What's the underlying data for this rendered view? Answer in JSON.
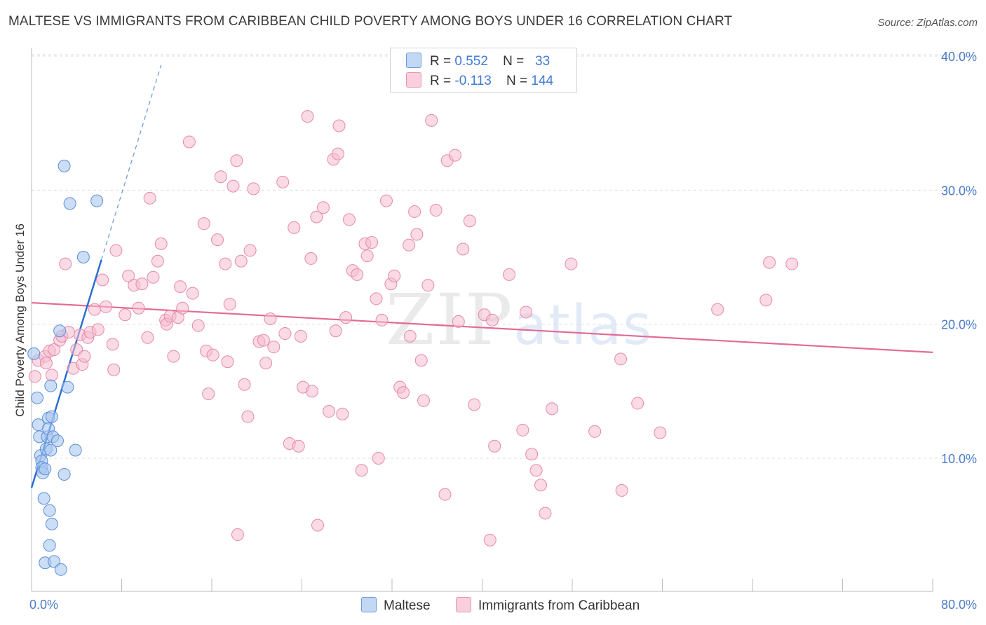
{
  "title": "MALTESE VS IMMIGRANTS FROM CARIBBEAN CHILD POVERTY AMONG BOYS UNDER 16 CORRELATION CHART",
  "source": "Source: ZipAtlas.com",
  "watermark": {
    "zip": "ZIP",
    "atlas": "atlas"
  },
  "colors": {
    "maltese_fill": "#aac7f0",
    "maltese_stroke": "#5b8fd8",
    "maltese_line": "#2a6fd0",
    "caribbean_fill": "#f6bcd0",
    "caribbean_stroke": "#e58aaa",
    "caribbean_line": "#e46a95",
    "tick_text": "#4a7cc9",
    "grid": "#dcdcdc"
  },
  "legend": {
    "r_label": "R =",
    "n_label": "N =",
    "rows": [
      {
        "r": "0.552",
        "n": "33"
      },
      {
        "r": "-0.113",
        "n": "144"
      }
    ]
  },
  "chart_data": {
    "type": "scatter",
    "title": "MALTESE VS IMMIGRANTS FROM CARIBBEAN CHILD POVERTY AMONG BOYS UNDER 16 CORRELATION CHART",
    "xlabel": "",
    "ylabel": "Child Poverty Among Boys Under 16",
    "xlim": [
      0,
      80
    ],
    "ylim": [
      0,
      42
    ],
    "x_ticks_labeled": [
      {
        "v": 0,
        "label": "0.0%"
      },
      {
        "v": 80,
        "label": "80.0%"
      }
    ],
    "x_ticks_minor": [
      0,
      8,
      16,
      24,
      32,
      40,
      48,
      56,
      64,
      72,
      80
    ],
    "y_ticks": [
      {
        "v": 10,
        "label": "10.0%"
      },
      {
        "v": 20,
        "label": "20.0%"
      },
      {
        "v": 30,
        "label": "30.0%"
      },
      {
        "v": 40,
        "label": "40.0%"
      }
    ],
    "grid": true,
    "legend_position": "top-center",
    "series": [
      {
        "name": "Maltese",
        "r": 0.552,
        "n": 33,
        "trend": {
          "x0": 0,
          "y0": 7.8,
          "x1": 6.2,
          "y1": 24.8,
          "dash_to_x": 11.5
        },
        "points": [
          [
            0.2,
            17.8
          ],
          [
            0.5,
            14.5
          ],
          [
            0.6,
            12.5
          ],
          [
            0.7,
            11.6
          ],
          [
            0.8,
            10.2
          ],
          [
            0.9,
            9.8
          ],
          [
            0.9,
            9.3
          ],
          [
            1.0,
            8.9
          ],
          [
            1.1,
            7.0
          ],
          [
            1.2,
            9.2
          ],
          [
            1.2,
            2.2
          ],
          [
            1.3,
            10.7
          ],
          [
            1.4,
            11.6
          ],
          [
            1.5,
            13.0
          ],
          [
            1.5,
            12.2
          ],
          [
            1.6,
            6.1
          ],
          [
            1.6,
            3.5
          ],
          [
            1.7,
            10.6
          ],
          [
            1.7,
            15.4
          ],
          [
            1.8,
            13.1
          ],
          [
            1.8,
            5.1
          ],
          [
            1.9,
            11.6
          ],
          [
            2.0,
            2.3
          ],
          [
            2.3,
            11.3
          ],
          [
            2.5,
            19.5
          ],
          [
            2.6,
            1.7
          ],
          [
            2.9,
            31.8
          ],
          [
            2.9,
            8.8
          ],
          [
            3.2,
            15.3
          ],
          [
            3.4,
            29.0
          ],
          [
            3.9,
            10.6
          ],
          [
            4.6,
            25.0
          ],
          [
            5.8,
            29.2
          ]
        ]
      },
      {
        "name": "Immigrants from Caribbean",
        "r": -0.113,
        "n": 144,
        "trend": {
          "x0": 0,
          "y0": 21.6,
          "x1": 80,
          "y1": 17.9
        },
        "points": [
          [
            0.3,
            16.1
          ],
          [
            0.6,
            17.3
          ],
          [
            1.2,
            17.6
          ],
          [
            1.3,
            17.1
          ],
          [
            1.6,
            18.0
          ],
          [
            1.8,
            16.2
          ],
          [
            2.0,
            18.1
          ],
          [
            2.5,
            18.8
          ],
          [
            2.7,
            19.1
          ],
          [
            3.0,
            24.5
          ],
          [
            3.3,
            19.4
          ],
          [
            3.7,
            16.7
          ],
          [
            4.0,
            18.1
          ],
          [
            4.3,
            19.2
          ],
          [
            4.5,
            17.0
          ],
          [
            4.7,
            17.6
          ],
          [
            5.0,
            19.0
          ],
          [
            5.2,
            19.4
          ],
          [
            5.6,
            21.1
          ],
          [
            5.9,
            19.6
          ],
          [
            6.3,
            23.3
          ],
          [
            6.6,
            21.3
          ],
          [
            7.5,
            25.5
          ],
          [
            7.2,
            18.5
          ],
          [
            7.3,
            16.6
          ],
          [
            8.3,
            20.7
          ],
          [
            8.6,
            23.6
          ],
          [
            9.1,
            22.9
          ],
          [
            9.5,
            21.2
          ],
          [
            9.8,
            23.0
          ],
          [
            10.3,
            19.0
          ],
          [
            10.5,
            29.4
          ],
          [
            10.8,
            23.5
          ],
          [
            11.2,
            24.7
          ],
          [
            11.5,
            26.0
          ],
          [
            11.9,
            20.3
          ],
          [
            12.0,
            20.0
          ],
          [
            12.3,
            20.6
          ],
          [
            12.6,
            17.6
          ],
          [
            13.0,
            20.5
          ],
          [
            13.2,
            22.8
          ],
          [
            13.4,
            21.2
          ],
          [
            14.0,
            33.6
          ],
          [
            14.3,
            22.3
          ],
          [
            14.8,
            19.9
          ],
          [
            15.3,
            27.5
          ],
          [
            15.5,
            18.0
          ],
          [
            15.7,
            14.8
          ],
          [
            16.1,
            17.7
          ],
          [
            16.5,
            26.3
          ],
          [
            16.8,
            31.0
          ],
          [
            17.2,
            24.5
          ],
          [
            17.4,
            17.2
          ],
          [
            17.6,
            21.5
          ],
          [
            17.9,
            30.3
          ],
          [
            18.2,
            32.2
          ],
          [
            18.6,
            24.7
          ],
          [
            18.9,
            15.5
          ],
          [
            19.2,
            13.1
          ],
          [
            19.4,
            25.5
          ],
          [
            19.7,
            30.1
          ],
          [
            20.2,
            18.7
          ],
          [
            20.6,
            18.8
          ],
          [
            20.8,
            17.1
          ],
          [
            21.2,
            20.4
          ],
          [
            21.5,
            18.3
          ],
          [
            22.3,
            30.6
          ],
          [
            22.5,
            19.3
          ],
          [
            22.9,
            11.1
          ],
          [
            23.3,
            27.2
          ],
          [
            23.7,
            10.9
          ],
          [
            23.9,
            19.1
          ],
          [
            24.1,
            15.3
          ],
          [
            24.8,
            24.9
          ],
          [
            24.9,
            15.0
          ],
          [
            24.5,
            35.5
          ],
          [
            25.3,
            28.0
          ],
          [
            25.4,
            5.0
          ],
          [
            25.9,
            28.7
          ],
          [
            26.4,
            13.5
          ],
          [
            26.8,
            32.3
          ],
          [
            27.0,
            19.5
          ],
          [
            27.2,
            32.7
          ],
          [
            27.3,
            34.8
          ],
          [
            27.6,
            13.3
          ],
          [
            27.9,
            20.5
          ],
          [
            28.2,
            27.8
          ],
          [
            28.5,
            24.0
          ],
          [
            28.9,
            23.7
          ],
          [
            29.3,
            9.1
          ],
          [
            29.6,
            26.0
          ],
          [
            29.8,
            25.1
          ],
          [
            30.2,
            26.1
          ],
          [
            30.6,
            21.9
          ],
          [
            30.8,
            10.0
          ],
          [
            31.1,
            20.3
          ],
          [
            31.5,
            29.2
          ],
          [
            31.9,
            23.0
          ],
          [
            32.2,
            23.6
          ],
          [
            32.7,
            15.3
          ],
          [
            33.0,
            14.9
          ],
          [
            33.5,
            25.9
          ],
          [
            33.6,
            19.1
          ],
          [
            34.0,
            28.4
          ],
          [
            34.2,
            26.7
          ],
          [
            34.6,
            17.3
          ],
          [
            34.8,
            14.3
          ],
          [
            35.2,
            22.9
          ],
          [
            35.5,
            35.2
          ],
          [
            35.9,
            28.5
          ],
          [
            36.7,
            7.3
          ],
          [
            36.9,
            32.2
          ],
          [
            37.6,
            32.6
          ],
          [
            37.9,
            20.2
          ],
          [
            38.3,
            25.6
          ],
          [
            38.9,
            27.7
          ],
          [
            39.3,
            14.0
          ],
          [
            40.2,
            20.7
          ],
          [
            40.9,
            20.3
          ],
          [
            41.1,
            10.9
          ],
          [
            42.4,
            23.7
          ],
          [
            43.6,
            12.1
          ],
          [
            43.9,
            20.9
          ],
          [
            44.4,
            10.3
          ],
          [
            44.8,
            9.1
          ],
          [
            45.2,
            8.0
          ],
          [
            45.6,
            5.9
          ],
          [
            46.2,
            13.7
          ],
          [
            47.9,
            24.5
          ],
          [
            50.0,
            12.0
          ],
          [
            52.3,
            17.4
          ],
          [
            52.4,
            7.6
          ],
          [
            53.8,
            14.1
          ],
          [
            55.8,
            11.9
          ],
          [
            60.9,
            21.1
          ],
          [
            65.2,
            21.8
          ],
          [
            65.5,
            24.6
          ],
          [
            67.5,
            24.5
          ],
          [
            40.7,
            3.9
          ],
          [
            18.3,
            4.3
          ]
        ]
      }
    ]
  },
  "bottom_legend": [
    {
      "label": "Maltese"
    },
    {
      "label": "Immigrants from Caribbean"
    }
  ]
}
